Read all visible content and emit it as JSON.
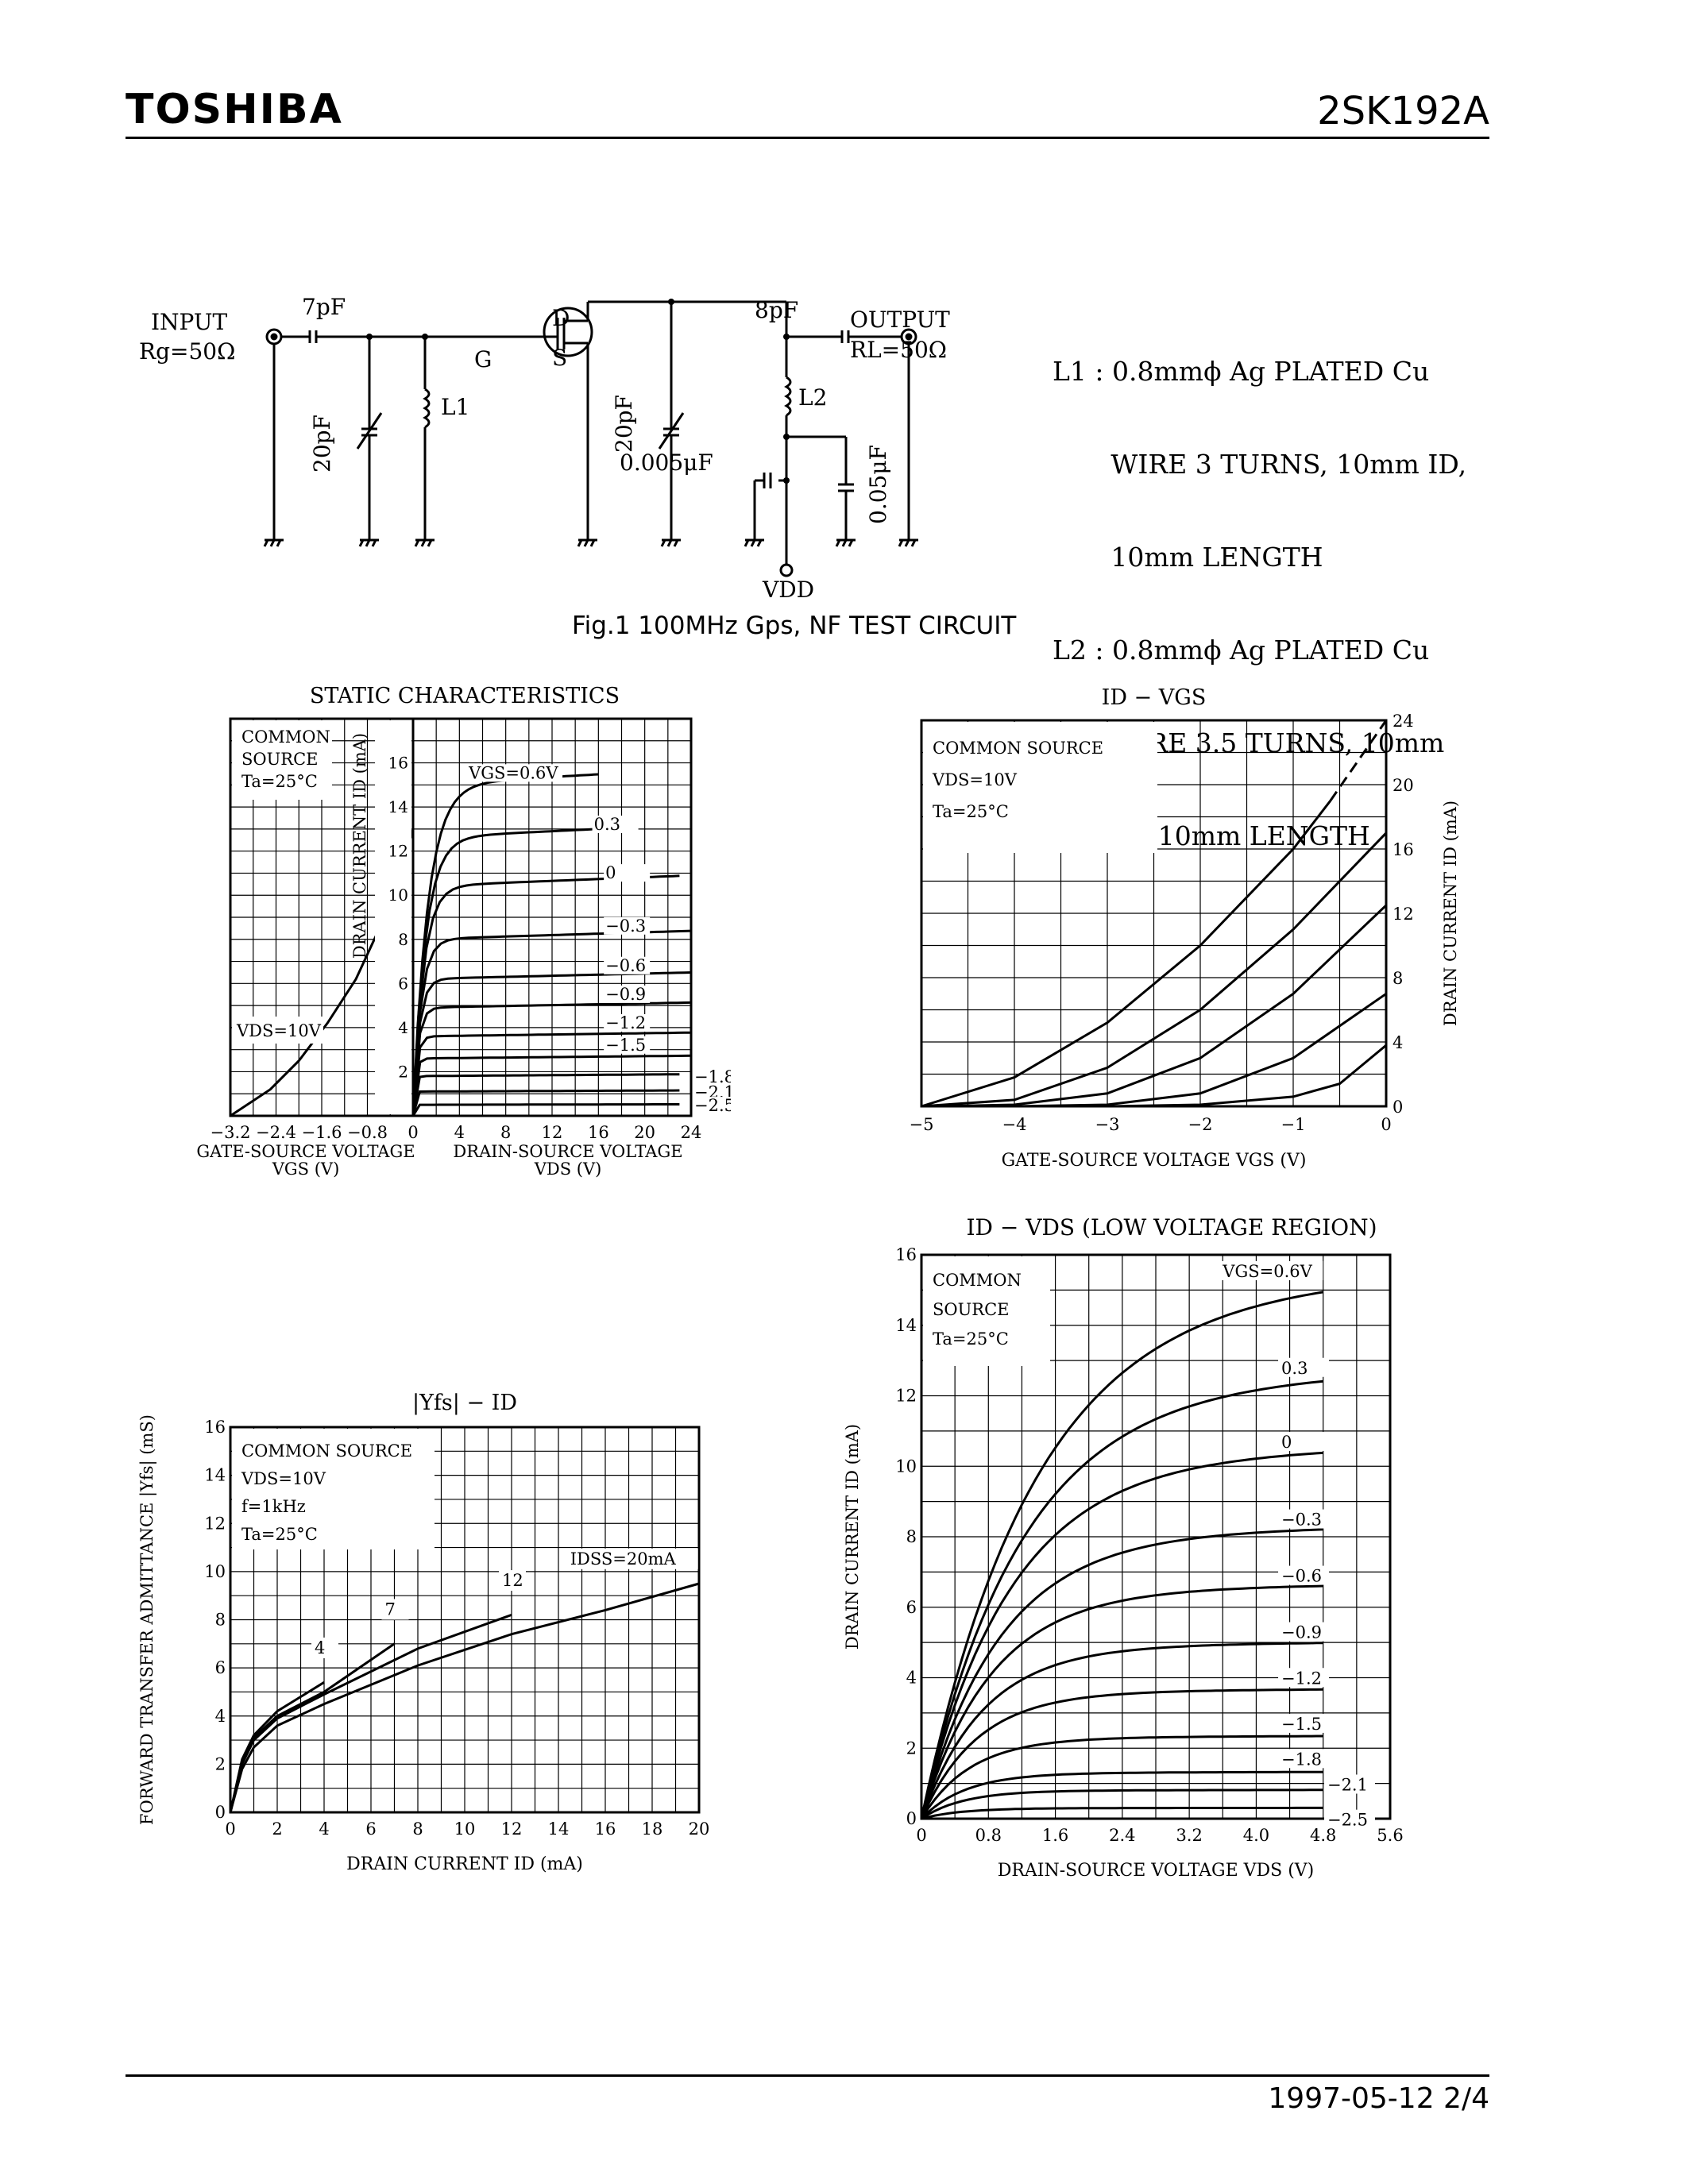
{
  "header": {
    "brand": "TOSHIBA",
    "part_number": "2SK192A"
  },
  "footer": {
    "date": "1997-05-12",
    "page": "2/4",
    "text": "1997-05-12   2/4"
  },
  "circuit": {
    "input_label": "INPUT",
    "input_res": "Rg=50Ω",
    "c_in": "7pF",
    "c_var1": "20pF",
    "l1": "L1",
    "gate": "G",
    "drain": "D",
    "source": "S",
    "c_var2": "20pF",
    "c_out": "8pF",
    "l2": "L2",
    "c_bypass1": "0.005μF",
    "c_bypass2": "0.05μF",
    "vdd": "VDD",
    "output_label": "OUTPUT",
    "output_res": "RL=50Ω",
    "caption": "Fig.1  100MHz Gps, NF TEST CIRCUIT",
    "notes": [
      "L1 : 0.8mmϕ Ag PLATED Cu",
      "       WIRE 3 TURNS, 10mm ID,",
      "       10mm LENGTH",
      "L2 : 0.8mmϕ Ag PLATED Cu",
      "       WIRE 3.5 TURNS, 10mm",
      "       ID, 10mm LENGTH"
    ]
  },
  "chart_data": [
    {
      "type": "line",
      "title": "STATIC CHARACTERISTICS",
      "note": [
        "COMMON",
        "SOURCE",
        "Ta=25°C"
      ],
      "left_panel": {
        "xlabel": "GATE-SOURCE VOLTAGE",
        "xunit": "VGS  (V)",
        "xticks": [
          "−3.2",
          "−2.4",
          "−1.6",
          "−0.8"
        ],
        "xlim": [
          -3.2,
          0
        ],
        "series_label": "VDS=10V",
        "x": [
          -3.2,
          -2.5,
          -2.0,
          -1.5,
          -1.0,
          -0.5,
          -0.2,
          0.0
        ],
        "y": [
          0.0,
          1.2,
          2.5,
          4.2,
          6.2,
          9.0,
          11.2,
          13.0
        ]
      },
      "right_panel": {
        "xlabel": "DRAIN-SOURCE VOLTAGE",
        "xunit": "VDS  (V)",
        "xticks": [
          "0",
          "4",
          "8",
          "12",
          "16",
          "20",
          "24"
        ],
        "xlim": [
          0,
          24
        ],
        "ylabel": "DRAIN CURRENT  ID  (mA)",
        "yticks": [
          "2",
          "4",
          "6",
          "8",
          "10",
          "12",
          "14",
          "16"
        ],
        "ylim": [
          0,
          18
        ],
        "series": [
          {
            "name": "VGS=0.6V",
            "sat": 15.0,
            "end": 16.0
          },
          {
            "name": "0.3",
            "sat": 12.6,
            "end": 19.0
          },
          {
            "name": "0",
            "sat": 10.4,
            "end": 23.0
          },
          {
            "name": "−0.3",
            "sat": 8.0,
            "end": 24.0
          },
          {
            "name": "−0.6",
            "sat": 6.2,
            "end": 24.0
          },
          {
            "name": "−0.9",
            "sat": 4.9,
            "end": 24.0
          },
          {
            "name": "−1.2",
            "sat": 3.6,
            "end": 24.0
          },
          {
            "name": "−1.5",
            "sat": 2.6,
            "end": 24.0
          },
          {
            "name": "−1.8",
            "sat": 1.8,
            "end": 23.0
          },
          {
            "name": "−2.1",
            "sat": 1.1,
            "end": 23.0
          },
          {
            "name": "−2.5",
            "sat": 0.5,
            "end": 23.0
          }
        ]
      }
    },
    {
      "type": "line",
      "title": "ID − VGS",
      "note": [
        "COMMON SOURCE",
        "VDS=10V",
        "Ta=25°C"
      ],
      "xlabel": "GATE-SOURCE VOLTAGE  VGS  (V)",
      "ylabel": "DRAIN CURRENT  ID  (mA)",
      "xticks": [
        "−5",
        "−4",
        "−3",
        "−2",
        "−1",
        "0"
      ],
      "yticks": [
        "0",
        "4",
        "8",
        "12",
        "16",
        "20",
        "24"
      ],
      "xlim": [
        -5,
        0
      ],
      "ylim": [
        0,
        24
      ],
      "series": [
        {
          "x": [
            -5.0,
            -4.0,
            -3.0,
            -2.0,
            -1.0,
            -0.6
          ],
          "y": [
            0.0,
            1.8,
            5.2,
            10.0,
            16.0,
            19.0
          ]
        },
        {
          "x": [
            -5.0,
            -4.0,
            -3.0,
            -2.0,
            -1.0,
            0.0
          ],
          "y": [
            0.0,
            0.4,
            2.4,
            6.0,
            11.0,
            17.0
          ]
        },
        {
          "x": [
            -4.8,
            -4.0,
            -3.0,
            -2.0,
            -1.0,
            0.0
          ],
          "y": [
            0.0,
            0.1,
            0.8,
            3.0,
            7.0,
            12.5
          ]
        },
        {
          "x": [
            -4.0,
            -3.0,
            -2.0,
            -1.0,
            0.0
          ],
          "y": [
            0.0,
            0.1,
            0.8,
            3.0,
            7.0
          ]
        },
        {
          "x": [
            -3.0,
            -2.0,
            -1.0,
            -0.5,
            0.0
          ],
          "y": [
            0.0,
            0.1,
            0.6,
            1.4,
            3.8
          ]
        }
      ]
    },
    {
      "type": "line",
      "title": "|Yfs| − ID",
      "note": [
        "COMMON SOURCE",
        "VDS=10V",
        "f=1kHz",
        "Ta=25°C"
      ],
      "xlabel": "DRAIN CURRENT  ID  (mA)",
      "ylabel": "FORWARD TRANSFER ADMITTANCE  |Yfs|  (mS)",
      "xticks": [
        "0",
        "2",
        "4",
        "6",
        "8",
        "10",
        "12",
        "14",
        "16",
        "18",
        "20"
      ],
      "yticks": [
        "0",
        "2",
        "4",
        "6",
        "8",
        "10",
        "12",
        "14",
        "16"
      ],
      "xlim": [
        0,
        20
      ],
      "ylim": [
        0,
        16
      ],
      "series": [
        {
          "name": "4",
          "x": [
            0,
            0.5,
            1,
            2,
            3,
            4
          ],
          "y": [
            0,
            2.2,
            3.2,
            4.2,
            4.8,
            5.4
          ]
        },
        {
          "name": "7",
          "x": [
            0,
            0.5,
            1,
            2,
            4,
            7
          ],
          "y": [
            0,
            2.1,
            3.1,
            4.0,
            5.0,
            7.0
          ]
        },
        {
          "name": "12",
          "x": [
            0,
            0.5,
            1,
            2,
            4,
            8,
            12
          ],
          "y": [
            0,
            2.0,
            3.0,
            3.9,
            4.9,
            6.8,
            8.2
          ]
        },
        {
          "name": "IDSS=20mA",
          "x": [
            0,
            0.5,
            1,
            2,
            4,
            8,
            12,
            16,
            20
          ],
          "y": [
            0,
            1.8,
            2.7,
            3.6,
            4.5,
            6.1,
            7.4,
            8.4,
            9.5
          ]
        }
      ]
    },
    {
      "type": "line",
      "title": "ID − VDS   (LOW VOLTAGE REGION)",
      "note": [
        "COMMON",
        "SOURCE",
        "Ta=25°C"
      ],
      "xlabel": "DRAIN-SOURCE VOLTAGE  VDS  (V)",
      "ylabel": "DRAIN CURRENT  ID  (mA)",
      "xticks": [
        "0",
        "0.8",
        "1.6",
        "2.4",
        "3.2",
        "4.0",
        "4.8",
        "5.6"
      ],
      "yticks": [
        "0",
        "2",
        "4",
        "6",
        "8",
        "10",
        "12",
        "14",
        "16"
      ],
      "xlim": [
        0,
        5.6
      ],
      "ylim": [
        0,
        16
      ],
      "series": [
        {
          "name": "VGS=0.6V",
          "sat": 15.1
        },
        {
          "name": "0.3",
          "sat": 12.4
        },
        {
          "name": "0",
          "sat": 10.3
        },
        {
          "name": "−0.3",
          "sat": 8.1
        },
        {
          "name": "−0.6",
          "sat": 6.5
        },
        {
          "name": "−0.9",
          "sat": 4.9
        },
        {
          "name": "−1.2",
          "sat": 3.6
        },
        {
          "name": "−1.5",
          "sat": 2.3
        },
        {
          "name": "−1.8",
          "sat": 1.3
        },
        {
          "name": "−2.1",
          "sat": 0.8
        },
        {
          "name": "−2.5",
          "sat": 0.3
        }
      ]
    }
  ]
}
